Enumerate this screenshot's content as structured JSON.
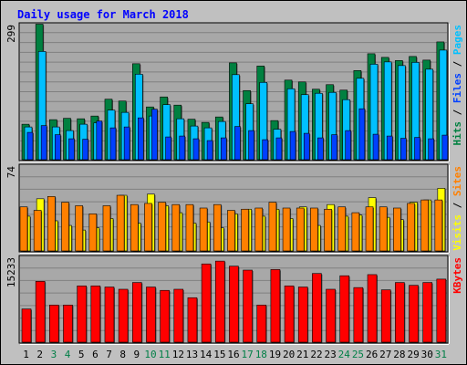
{
  "chart_data": {
    "type": "bar",
    "title": "Daily usage for March 2018",
    "colors": {
      "background": "#c0c0c0",
      "plot_bg": "#a8a8a8",
      "title": "#0000ff",
      "hits": "#008040",
      "files": "#00c0ff",
      "pages": "#0040ff",
      "visits": "#ffff00",
      "sites": "#ff8000",
      "kbytes": "#ff0000",
      "weekend_label": "#007f46",
      "weekday_label": "#000000"
    },
    "categories": [
      "1",
      "2",
      "3",
      "4",
      "5",
      "6",
      "7",
      "8",
      "9",
      "10",
      "11",
      "12",
      "13",
      "14",
      "15",
      "16",
      "17",
      "18",
      "19",
      "20",
      "21",
      "22",
      "23",
      "24",
      "25",
      "26",
      "27",
      "28",
      "29",
      "30",
      "31"
    ],
    "weekend_days": [
      "3",
      "4",
      "10",
      "11",
      "17",
      "18",
      "24",
      "25",
      "31"
    ],
    "panels": [
      {
        "id": "hits-files-pages",
        "ymax_label": "299",
        "ymax": 299,
        "legend": [
          {
            "text": "Pages",
            "color": "#00c0ff"
          },
          {
            "text": " / ",
            "color": "#000000"
          },
          {
            "text": "Files",
            "color": "#0040ff"
          },
          {
            "text": " / ",
            "color": "#000000"
          },
          {
            "text": "Hits",
            "color": "#008040"
          }
        ],
        "series": [
          {
            "name": "Hits",
            "color": "#008040",
            "values": [
              78,
              298,
              88,
              91,
              90,
              96,
              133,
              129,
              211,
              116,
              138,
              120,
              89,
              82,
              94,
              213,
              152,
              206,
              86,
              175,
              171,
              155,
              165,
              153,
              196,
              233,
              225,
              218,
              227,
              219,
              259
            ]
          },
          {
            "name": "Files",
            "color": "#00c0ff",
            "values": [
              72,
              238,
              72,
              64,
              78,
              81,
              109,
              104,
              188,
              96,
              121,
              90,
              74,
              70,
              84,
              187,
              123,
              170,
              67,
              156,
              143,
              146,
              148,
              132,
              179,
              210,
              215,
              207,
              214,
              199,
              241
            ]
          },
          {
            "name": "Pages",
            "color": "#0040ff",
            "values": [
              60,
              75,
              55,
              46,
              45,
              85,
              70,
              72,
              92,
              111,
              50,
              52,
              46,
              42,
              48,
              73,
              64,
              44,
              48,
              62,
              58,
              48,
              55,
              64,
              112,
              56,
              52,
              47,
              49,
              46,
              54
            ]
          }
        ]
      },
      {
        "id": "visits-sites",
        "ymax_label": "74",
        "ymax": 74,
        "legend": [
          {
            "text": "Sites",
            "color": "#ff8000"
          },
          {
            "text": " / ",
            "color": "#000000"
          },
          {
            "text": "Visits",
            "color": "#ffff00"
          }
        ],
        "series": [
          {
            "name": "Visits",
            "color": "#ffff00",
            "values": [
              30,
              45,
              26,
              22,
              18,
              20,
              28,
              48,
              24,
              49,
              39,
              33,
              24,
              25,
              20,
              32,
              36,
              30,
              36,
              28,
              38,
              22,
              40,
              30,
              31,
              46,
              29,
              27,
              42,
              44,
              54
            ]
          },
          {
            "name": "Sites",
            "color": "#ff8000",
            "values": [
              38,
              35,
              47,
              42,
              39,
              32,
              39,
              48,
              40,
              41,
              42,
              40,
              40,
              37,
              40,
              35,
              36,
              37,
              42,
              37,
              37,
              37,
              36,
              38,
              33,
              38,
              38,
              37,
              41,
              44,
              44
            ]
          }
        ]
      },
      {
        "id": "kbytes",
        "ymax_label": "15233",
        "ymax": 15233,
        "legend": [
          {
            "text": "KBytes",
            "color": "#ff0000"
          }
        ],
        "series": [
          {
            "name": "KBytes",
            "color": "#ff0000",
            "values": [
              5900,
              10800,
              6600,
              6600,
              10000,
              10000,
              9800,
              9400,
              10600,
              9800,
              9200,
              9400,
              7900,
              13900,
              14400,
              13500,
              12800,
              6600,
              12900,
              10000,
              9800,
              12200,
              9400,
              11800,
              9700,
              12000,
              9300,
              10600,
              10100,
              10600,
              11200
            ]
          }
        ]
      }
    ]
  }
}
